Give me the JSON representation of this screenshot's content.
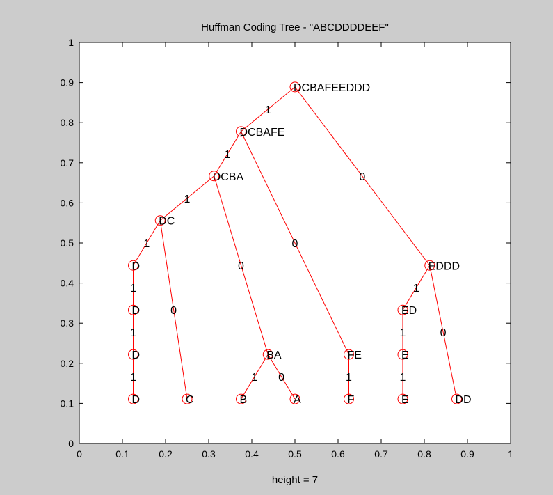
{
  "chart_data": {
    "type": "scatter",
    "title": "Huffman Coding Tree - \"ABCDDDDEEF\"",
    "xlabel": "height = 7",
    "ylabel": "",
    "xlim": [
      0,
      1
    ],
    "ylim": [
      0,
      1
    ],
    "grid": false,
    "x_ticks": [
      0,
      0.1,
      0.2,
      0.3,
      0.4,
      0.5,
      0.6,
      0.7,
      0.8,
      0.9,
      1
    ],
    "x_tick_labels": [
      "0",
      "0.1",
      "0.2",
      "0.3",
      "0.4",
      "0.5",
      "0.6",
      "0.7",
      "0.8",
      "0.9",
      "1"
    ],
    "y_ticks": [
      0,
      0.1,
      0.2,
      0.3,
      0.4,
      0.5,
      0.6,
      0.7,
      0.8,
      0.9,
      1
    ],
    "y_tick_labels": [
      "0",
      "0.1",
      "0.2",
      "0.3",
      "0.4",
      "0.5",
      "0.6",
      "0.7",
      "0.8",
      "0.9",
      "1"
    ],
    "line_color": "#ff0000",
    "nodes": [
      {
        "id": "root",
        "label": "DCBAFEEDDD",
        "x": 0.5,
        "y": 0.889
      },
      {
        "id": "n_dcbafe",
        "label": "DCBAFE",
        "x": 0.375,
        "y": 0.778
      },
      {
        "id": "n_dcba",
        "label": "DCBA",
        "x": 0.3125,
        "y": 0.667
      },
      {
        "id": "n_dc",
        "label": "DC",
        "x": 0.1875,
        "y": 0.556
      },
      {
        "id": "n_d1",
        "label": "D",
        "x": 0.125,
        "y": 0.444
      },
      {
        "id": "n_d2",
        "label": "D",
        "x": 0.125,
        "y": 0.333
      },
      {
        "id": "n_d3",
        "label": "D",
        "x": 0.125,
        "y": 0.222
      },
      {
        "id": "n_d4",
        "label": "D",
        "x": 0.125,
        "y": 0.111
      },
      {
        "id": "n_c",
        "label": "C",
        "x": 0.25,
        "y": 0.111
      },
      {
        "id": "n_ba",
        "label": "BA",
        "x": 0.4375,
        "y": 0.222
      },
      {
        "id": "n_b",
        "label": "B",
        "x": 0.375,
        "y": 0.111
      },
      {
        "id": "n_a",
        "label": "A",
        "x": 0.5,
        "y": 0.111
      },
      {
        "id": "n_fe",
        "label": "FE",
        "x": 0.625,
        "y": 0.222
      },
      {
        "id": "n_f",
        "label": "F",
        "x": 0.625,
        "y": 0.111
      },
      {
        "id": "n_eddd",
        "label": "EDDD",
        "x": 0.8125,
        "y": 0.444
      },
      {
        "id": "n_ed",
        "label": "ED",
        "x": 0.75,
        "y": 0.333
      },
      {
        "id": "n_e1",
        "label": "E",
        "x": 0.75,
        "y": 0.222
      },
      {
        "id": "n_e2",
        "label": "E",
        "x": 0.75,
        "y": 0.111
      },
      {
        "id": "n_dd",
        "label": "DD",
        "x": 0.875,
        "y": 0.111
      }
    ],
    "edges": [
      {
        "from": "root",
        "to": "n_dcbafe",
        "label": "1"
      },
      {
        "from": "root",
        "to": "n_eddd",
        "label": "0"
      },
      {
        "from": "n_dcbafe",
        "to": "n_dcba",
        "label": "1"
      },
      {
        "from": "n_dcbafe",
        "to": "n_fe",
        "label": "0"
      },
      {
        "from": "n_dcba",
        "to": "n_dc",
        "label": "1"
      },
      {
        "from": "n_dcba",
        "to": "n_ba",
        "label": "0"
      },
      {
        "from": "n_dc",
        "to": "n_d1",
        "label": "1"
      },
      {
        "from": "n_dc",
        "to": "n_c",
        "label": "0"
      },
      {
        "from": "n_d1",
        "to": "n_d2",
        "label": "1"
      },
      {
        "from": "n_d2",
        "to": "n_d3",
        "label": "1"
      },
      {
        "from": "n_d3",
        "to": "n_d4",
        "label": "1"
      },
      {
        "from": "n_ba",
        "to": "n_b",
        "label": "1"
      },
      {
        "from": "n_ba",
        "to": "n_a",
        "label": "0"
      },
      {
        "from": "n_fe",
        "to": "n_f",
        "label": "1"
      },
      {
        "from": "n_eddd",
        "to": "n_ed",
        "label": "1"
      },
      {
        "from": "n_eddd",
        "to": "n_dd",
        "label": "0"
      },
      {
        "from": "n_ed",
        "to": "n_e1",
        "label": "1"
      },
      {
        "from": "n_e1",
        "to": "n_e2",
        "label": "1"
      }
    ]
  }
}
